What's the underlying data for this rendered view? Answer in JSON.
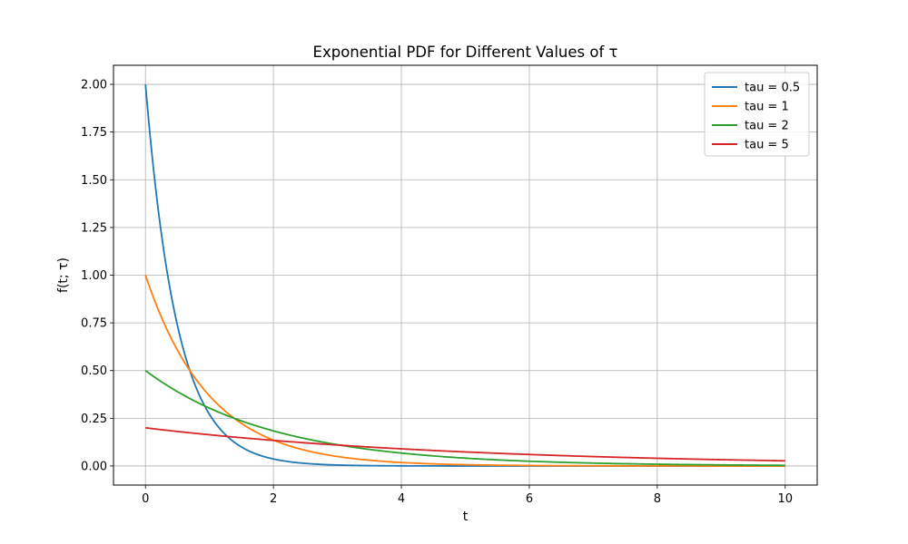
{
  "chart_data": {
    "type": "line",
    "title": "Exponential PDF for Different Values of τ",
    "xlabel": "t",
    "ylabel": "f(t; τ)",
    "xlim": [
      -0.5,
      10.5
    ],
    "ylim": [
      -0.1,
      2.1
    ],
    "xticks": [
      0,
      2,
      4,
      6,
      8,
      10
    ],
    "xtick_labels": [
      "0",
      "2",
      "4",
      "6",
      "8",
      "10"
    ],
    "yticks": [
      0.0,
      0.25,
      0.5,
      0.75,
      1.0,
      1.25,
      1.5,
      1.75,
      2.0
    ],
    "ytick_labels": [
      "0.00",
      "0.25",
      "0.50",
      "0.75",
      "1.00",
      "1.25",
      "1.50",
      "1.75",
      "2.00"
    ],
    "grid": true,
    "legend_position": "top-right",
    "x_range": [
      0,
      10
    ],
    "function": "f(t; tau) = (1/tau) * exp(-t/tau)",
    "series": [
      {
        "name": "tau = 0.5",
        "tau": 0.5,
        "color": "#1f77b4"
      },
      {
        "name": "tau = 1",
        "tau": 1,
        "color": "#ff7f0e"
      },
      {
        "name": "tau = 2",
        "tau": 2,
        "color": "#2ca02c"
      },
      {
        "name": "tau = 5",
        "tau": 5,
        "color": "#d62728"
      }
    ]
  }
}
